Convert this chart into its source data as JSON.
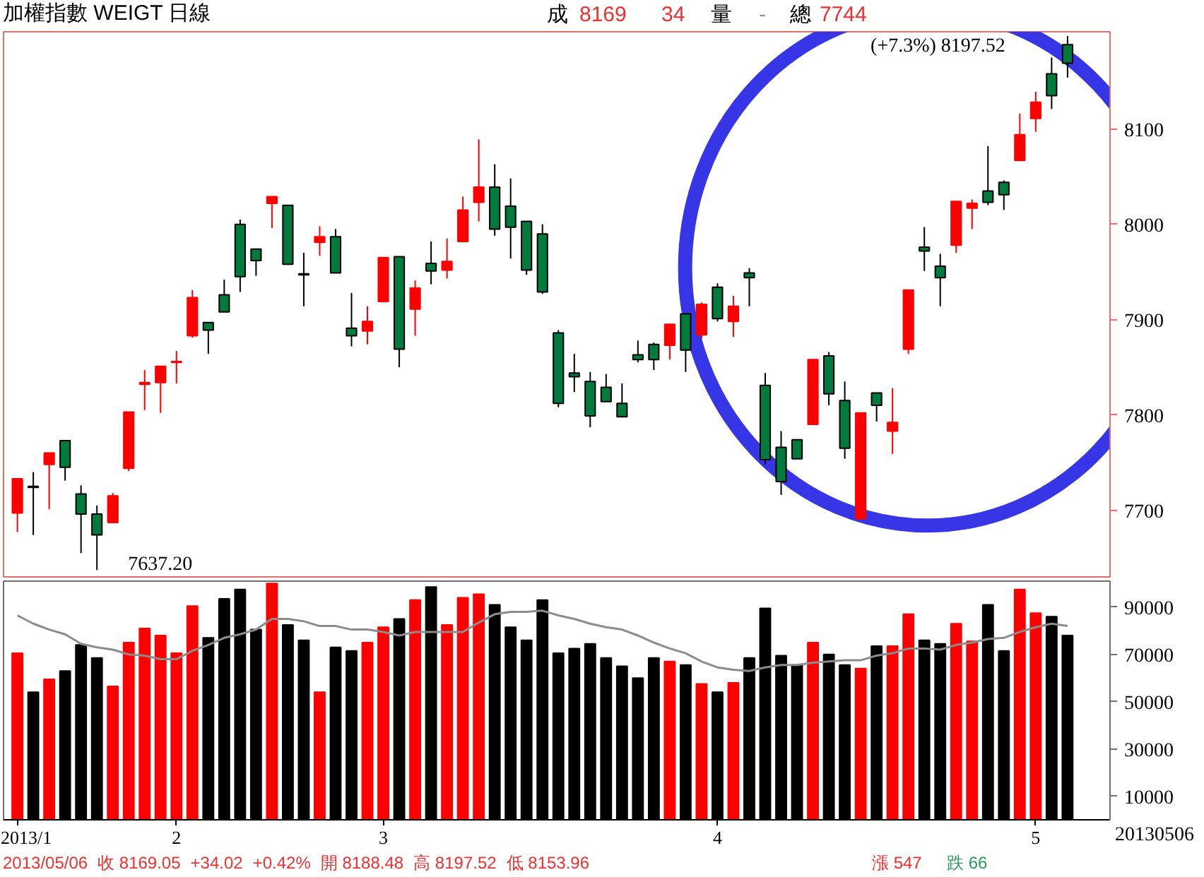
{
  "chart_data": [
    {
      "type": "candlestick",
      "title": "加權指數 WEIGT 日線",
      "tick_labels": "y",
      "categories": [
        "2013/1",
        null,
        null,
        null,
        null,
        null,
        null,
        null,
        null,
        null,
        "2",
        null,
        null,
        null,
        null,
        null,
        null,
        null,
        null,
        null,
        null,
        null,
        null,
        "3",
        null,
        null,
        null,
        null,
        null,
        null,
        null,
        null,
        null,
        null,
        null,
        null,
        null,
        null,
        null,
        null,
        null,
        null,
        null,
        null,
        "4",
        null,
        null,
        null,
        null,
        null,
        null,
        null,
        null,
        null,
        null,
        null,
        null,
        null,
        null,
        null,
        null,
        null,
        null,
        null,
        "5",
        null,
        null
      ],
      "ohlc": [
        [
          7697,
          7733,
          7677,
          7733
        ],
        [
          7725,
          7740,
          7674,
          7724
        ],
        [
          7748,
          7760,
          7701,
          7760
        ],
        [
          7773,
          7773,
          7731,
          7745
        ],
        [
          7717,
          7726,
          7655,
          7696
        ],
        [
          7696,
          7705,
          7637.2,
          7674
        ],
        [
          7687,
          7718,
          7687,
          7715
        ],
        [
          7744,
          7803,
          7741,
          7803
        ],
        [
          7832,
          7847,
          7805,
          7834
        ],
        [
          7834,
          7851,
          7802,
          7851
        ],
        [
          7855,
          7867,
          7833,
          7856
        ],
        [
          7883,
          7931,
          7881,
          7923
        ],
        [
          7897,
          7897,
          7864,
          7889
        ],
        [
          7926,
          7942,
          7908,
          7908
        ],
        [
          8000,
          8005,
          7929,
          7945
        ],
        [
          7974,
          7974,
          7946,
          7962
        ],
        [
          8022,
          8029,
          7996,
          8029
        ],
        [
          8020,
          8020,
          7958,
          7958
        ],
        [
          7948,
          7970,
          7914,
          7947
        ],
        [
          7981,
          7998,
          7967,
          7987
        ],
        [
          7987,
          7995,
          7949,
          7949
        ],
        [
          7891,
          7928,
          7872,
          7883
        ],
        [
          7888,
          7914,
          7874,
          7898
        ],
        [
          7919,
          7965,
          7919,
          7965
        ],
        [
          7966,
          7966,
          7850,
          7869
        ],
        [
          7911,
          7941,
          7883,
          7933
        ],
        [
          7959,
          7982,
          7937,
          7951
        ],
        [
          7952,
          7985,
          7943,
          7961
        ],
        [
          7982,
          8029,
          7982,
          8015
        ],
        [
          8023,
          8089,
          8003,
          8039
        ],
        [
          8039,
          8063,
          7988,
          7995
        ],
        [
          8019,
          8048,
          7964,
          7997
        ],
        [
          8003,
          8003,
          7947,
          7952
        ],
        [
          7990,
          8000,
          7927,
          7929
        ],
        [
          7886,
          7889,
          7808,
          7812
        ],
        [
          7844,
          7864,
          7824,
          7840
        ],
        [
          7835,
          7845,
          7787,
          7799
        ],
        [
          7829,
          7843,
          7814,
          7814
        ],
        [
          7812,
          7833,
          7798,
          7798
        ],
        [
          7863,
          7878,
          7855,
          7858
        ],
        [
          7874,
          7876,
          7847,
          7858
        ],
        [
          7873,
          7895,
          7858,
          7895
        ],
        [
          7906,
          7906,
          7845,
          7868
        ],
        [
          7884,
          7918,
          7880,
          7916
        ],
        [
          7934,
          7938,
          7898,
          7901
        ],
        [
          7898,
          7925,
          7882,
          7914
        ],
        [
          7949,
          7954,
          7914,
          7944
        ],
        [
          7831,
          7844,
          7748,
          7753
        ],
        [
          7766,
          7783,
          7716,
          7730
        ],
        [
          7774,
          7774,
          7754,
          7754
        ],
        [
          7790,
          7858,
          7790,
          7858
        ],
        [
          7862,
          7866,
          7810,
          7822
        ],
        [
          7815,
          7835,
          7754,
          7765
        ],
        [
          7691,
          7802,
          7691,
          7802
        ],
        [
          7823,
          7823,
          7793,
          7810
        ],
        [
          7783,
          7828,
          7759,
          7792
        ],
        [
          7869,
          7931,
          7864,
          7931
        ],
        [
          7976,
          7997,
          7951,
          7972
        ],
        [
          7956,
          7969,
          7914,
          7944
        ],
        [
          7978,
          8024,
          7970,
          8024
        ],
        [
          8017,
          8026,
          7995,
          8022
        ],
        [
          8035,
          8082,
          8020,
          8023
        ],
        [
          8044,
          8046,
          8015,
          8031
        ],
        [
          8067,
          8116,
          8067,
          8094
        ],
        [
          8111,
          8139,
          8097,
          8128
        ],
        [
          8158,
          8175,
          8121,
          8135.03
        ],
        [
          8188.48,
          8197.52,
          8153.96,
          8169.05
        ]
      ],
      "colors": [
        "#ff0000",
        "#000000",
        "#ff0000",
        "#007a3d",
        "#007a3d",
        "#007a3d",
        "#ff0000",
        "#ff0000",
        "#ff0000",
        "#ff0000",
        "#ff0000",
        "#ff0000",
        "#007a3d",
        "#007a3d",
        "#007a3d",
        "#007a3d",
        "#ff0000",
        "#007a3d",
        "#000000",
        "#ff0000",
        "#007a3d",
        "#007a3d",
        "#ff0000",
        "#ff0000",
        "#007a3d",
        "#ff0000",
        "#007a3d",
        "#ff0000",
        "#ff0000",
        "#ff0000",
        "#007a3d",
        "#007a3d",
        "#007a3d",
        "#007a3d",
        "#007a3d",
        "#007a3d",
        "#007a3d",
        "#007a3d",
        "#007a3d",
        "#007a3d",
        "#007a3d",
        "#ff0000",
        "#007a3d",
        "#ff0000",
        "#007a3d",
        "#ff0000",
        "#007a3d",
        "#007a3d",
        "#007a3d",
        "#007a3d",
        "#ff0000",
        "#007a3d",
        "#007a3d",
        "#ff0000",
        "#007a3d",
        "#ff0000",
        "#ff0000",
        "#007a3d",
        "#007a3d",
        "#ff0000",
        "#ff0000",
        "#007a3d",
        "#007a3d",
        "#ff0000",
        "#ff0000",
        "#007a3d",
        "#007a3d"
      ],
      "ylim": [
        7630,
        8202
      ],
      "yticks": [
        7700,
        7800,
        7900,
        8000,
        8100
      ],
      "annotations": [
        "(+7.3%) 8197.52",
        "7637.20",
        "成",
        "8169",
        "34",
        "量",
        "-",
        "總",
        "7744"
      ]
    },
    {
      "type": "bar",
      "categories": [
        "2013/1",
        null,
        null,
        null,
        null,
        null,
        null,
        null,
        null,
        null,
        "2",
        null,
        null,
        null,
        null,
        null,
        null,
        null,
        null,
        null,
        null,
        null,
        null,
        "3",
        null,
        null,
        null,
        null,
        null,
        null,
        null,
        null,
        null,
        null,
        null,
        null,
        null,
        null,
        null,
        null,
        null,
        null,
        null,
        null,
        "4",
        null,
        null,
        null,
        null,
        null,
        null,
        null,
        null,
        null,
        null,
        null,
        null,
        null,
        null,
        null,
        null,
        null,
        null,
        null,
        "5",
        null,
        null
      ],
      "series": [
        {
          "type": "bar",
          "values": [
            70500,
            54000,
            59500,
            63000,
            74000,
            68500,
            56500,
            75000,
            81000,
            78000,
            70500,
            90500,
            77000,
            93500,
            97500,
            80500,
            100000,
            82500,
            76000,
            54000,
            73000,
            71500,
            75000,
            81500,
            85000,
            93000,
            98500,
            82500,
            94000,
            95500,
            91000,
            81500,
            76000,
            93000,
            70500,
            72500,
            74500,
            68500,
            65000,
            60000,
            68500,
            67000,
            65500,
            57500,
            54000,
            58000,
            68500,
            89500,
            69500,
            65500,
            75000,
            70000,
            65500,
            64000,
            73500,
            73500,
            87000,
            76000,
            74500,
            83000,
            75500,
            91000,
            71500,
            97500,
            87500,
            86000,
            78000
          ],
          "colors": [
            "#ff0000",
            "#000000",
            "#ff0000",
            "#000000",
            "#000000",
            "#000000",
            "#ff0000",
            "#ff0000",
            "#ff0000",
            "#ff0000",
            "#ff0000",
            "#ff0000",
            "#000000",
            "#000000",
            "#000000",
            "#000000",
            "#ff0000",
            "#000000",
            "#000000",
            "#ff0000",
            "#000000",
            "#000000",
            "#ff0000",
            "#ff0000",
            "#000000",
            "#ff0000",
            "#000000",
            "#ff0000",
            "#ff0000",
            "#ff0000",
            "#000000",
            "#000000",
            "#000000",
            "#000000",
            "#000000",
            "#000000",
            "#000000",
            "#000000",
            "#000000",
            "#000000",
            "#000000",
            "#ff0000",
            "#000000",
            "#ff0000",
            "#000000",
            "#ff0000",
            "#000000",
            "#000000",
            "#000000",
            "#000000",
            "#ff0000",
            "#000000",
            "#000000",
            "#ff0000",
            "#000000",
            "#ff0000",
            "#ff0000",
            "#000000",
            "#000000",
            "#ff0000",
            "#ff0000",
            "#000000",
            "#000000",
            "#ff0000",
            "#ff0000",
            "#000000",
            "#000000"
          ]
        },
        {
          "type": "line",
          "color": "#8c8c8c",
          "values": [
            86500,
            83000,
            80500,
            78500,
            74500,
            73000,
            72000,
            70000,
            69500,
            68000,
            68000,
            71500,
            74000,
            77000,
            78500,
            80500,
            85000,
            85000,
            84000,
            82000,
            82000,
            80500,
            80500,
            79500,
            78000,
            79500,
            79500,
            79500,
            79500,
            83500,
            87000,
            88000,
            88000,
            88500,
            86500,
            85000,
            83000,
            81500,
            80500,
            78000,
            75000,
            72500,
            70500,
            67000,
            64500,
            63500,
            63000,
            64500,
            65500,
            65500,
            66500,
            67000,
            67500,
            67500,
            69500,
            70500,
            72500,
            72500,
            72000,
            74000,
            75000,
            76500,
            77000,
            79500,
            81500,
            83000,
            82000
          ]
        }
      ],
      "ylim": [
        0,
        101000
      ],
      "yticks": [
        10000,
        30000,
        50000,
        70000,
        90000
      ],
      "annotations": [
        "2013/05/06",
        "收 8169.05",
        "+34.02",
        "+0.42%",
        "開 8188.48",
        "高 8197.52",
        "低 8153.96",
        "漲 547",
        "跌 66",
        "20130506"
      ]
    }
  ]
}
